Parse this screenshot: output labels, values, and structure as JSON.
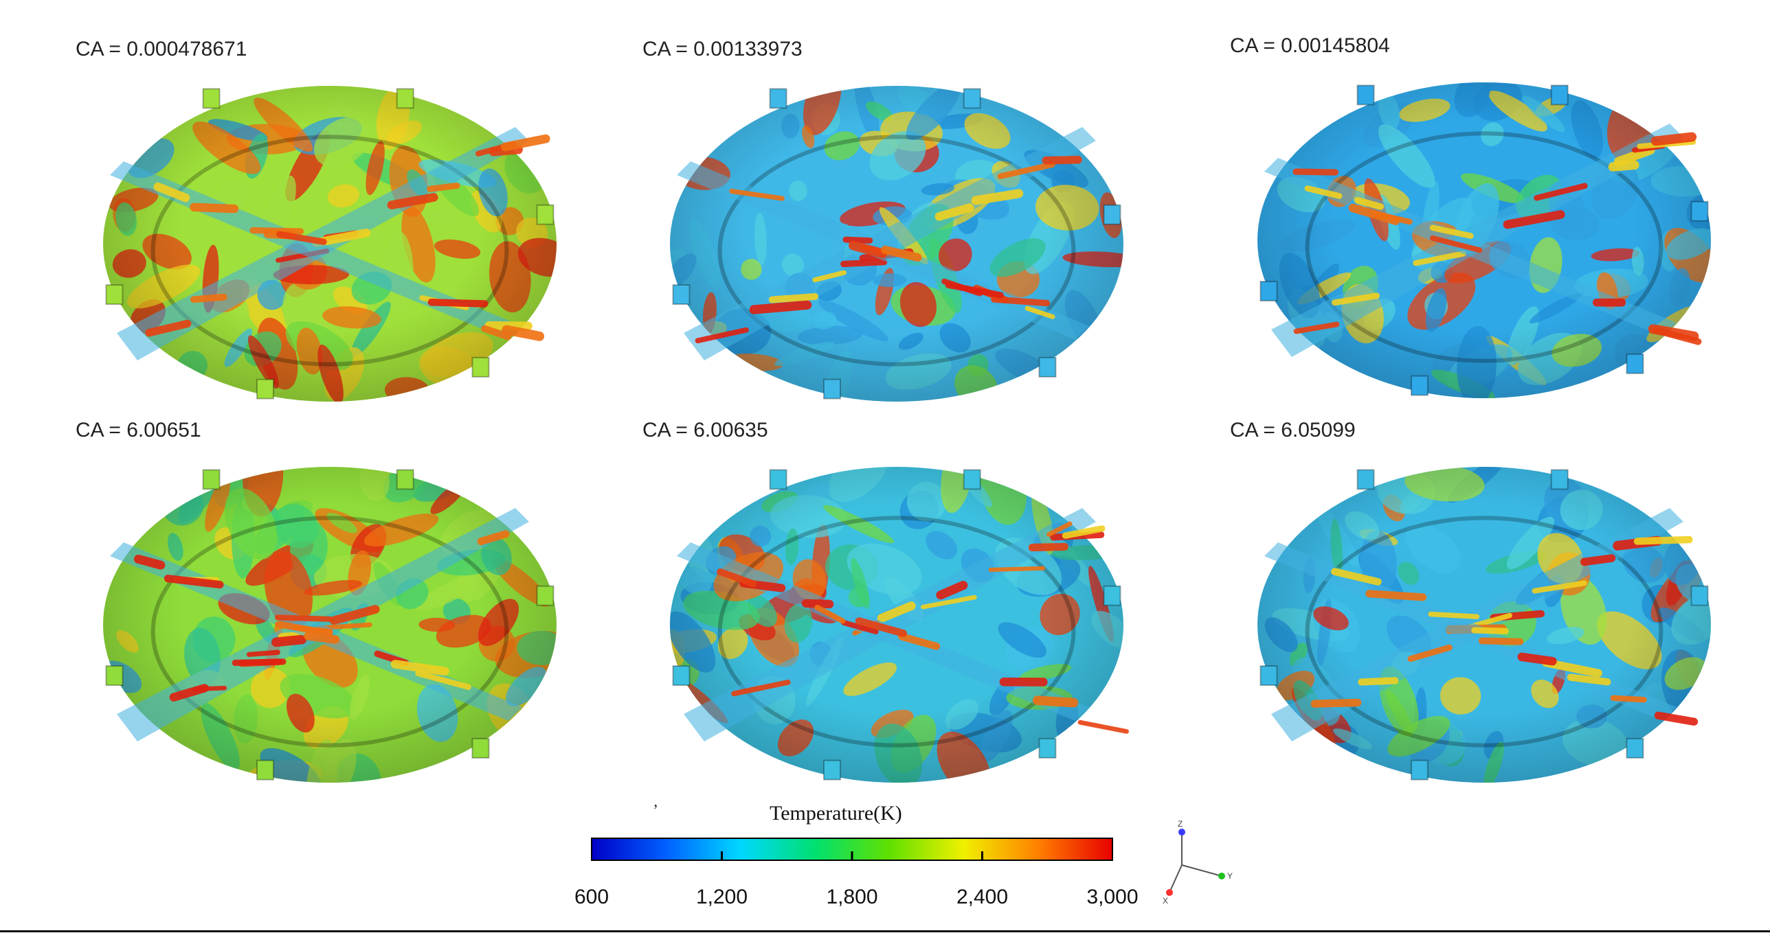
{
  "panels": [
    {
      "id": "p1",
      "label": "CA = 0.000478671",
      "base_color": "#9fe03a",
      "hot_fraction": 0.55,
      "cool_fraction": 0.08
    },
    {
      "id": "p2",
      "label": "CA = 0.00133973",
      "base_color": "#3fb8e8",
      "hot_fraction": 0.25,
      "cool_fraction": 0.6
    },
    {
      "id": "p3",
      "label": "CA = 0.00145804",
      "base_color": "#2fa8e8",
      "hot_fraction": 0.3,
      "cool_fraction": 0.65
    },
    {
      "id": "p4",
      "label": "CA = 6.00651",
      "base_color": "#8fdc3a",
      "hot_fraction": 0.45,
      "cool_fraction": 0.05
    },
    {
      "id": "p5",
      "label": "CA = 6.00635",
      "base_color": "#3cc0e0",
      "hot_fraction": 0.3,
      "cool_fraction": 0.5
    },
    {
      "id": "p6",
      "label": "CA = 6.05099",
      "base_color": "#3ab8e4",
      "hot_fraction": 0.3,
      "cool_fraction": 0.5
    }
  ],
  "legend": {
    "title": "Temperature(K)",
    "stray_mark": "’",
    "min": 600,
    "max": 3000,
    "ticks": [
      {
        "value": 600,
        "label": "600"
      },
      {
        "value": 1200,
        "label": "1,200"
      },
      {
        "value": 1800,
        "label": "1,800"
      },
      {
        "value": 2400,
        "label": "2,400"
      },
      {
        "value": 3000,
        "label": "3,000"
      }
    ],
    "colors": [
      "#0000c8",
      "#0060ff",
      "#00d8ff",
      "#00e070",
      "#60e000",
      "#f0f000",
      "#ff8000",
      "#e80000"
    ]
  },
  "axes": {
    "z": "Z",
    "y": "Y",
    "x": "X",
    "z_color": "#3a3aff",
    "y_color": "#20c020",
    "x_color": "#ff3030"
  }
}
